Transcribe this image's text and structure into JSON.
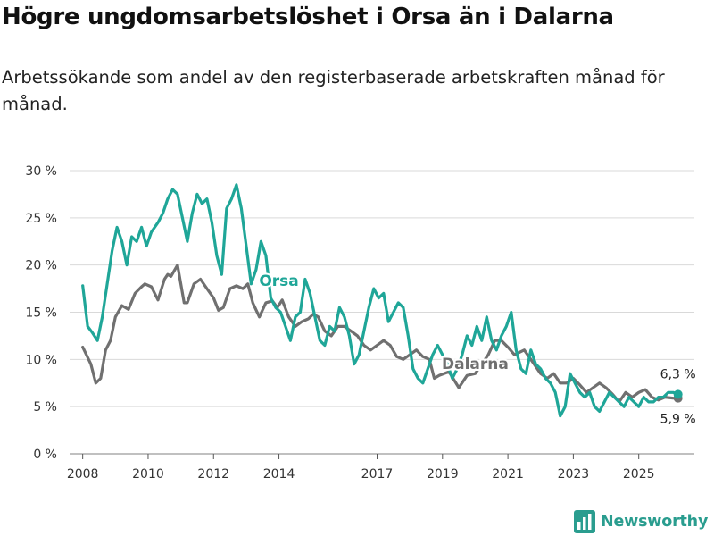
{
  "title": "Högre ungdomsarbetslöshet i Orsa än i Dalarna",
  "subtitle": "Arbetssökande som andel av den registerbaserade arbetskraften månad för månad.",
  "brand": {
    "name": "Newsworthy",
    "logo_icon": "bar-chart-icon",
    "color": "#2a9d8f"
  },
  "chart_data": {
    "type": "line",
    "ylim": [
      0,
      30
    ],
    "xlim": [
      2007.6,
      2026.7
    ],
    "yticks": [
      0,
      5,
      10,
      15,
      20,
      25,
      30
    ],
    "ytick_labels": [
      "0 %",
      "5 %",
      "10 %",
      "15 %",
      "20 %",
      "25 %",
      "30 %"
    ],
    "xticks": [
      2008,
      2010,
      2012,
      2014,
      2017,
      2019,
      2021,
      2023,
      2025
    ],
    "xtick_labels": [
      "2008",
      "2010",
      "2012",
      "2014",
      "2017",
      "2019",
      "2021",
      "2023",
      "2025"
    ],
    "grid": true,
    "series": [
      {
        "name": "Dalarna",
        "label": "Dalarna",
        "color": "#707070",
        "end_label": "5,9 %",
        "x": [
          2008.0,
          2008.25,
          2008.4,
          2008.55,
          2008.7,
          2008.85,
          2009.0,
          2009.2,
          2009.4,
          2009.6,
          2009.8,
          2009.9,
          2010.1,
          2010.3,
          2010.5,
          2010.6,
          2010.7,
          2010.9,
          2011.1,
          2011.2,
          2011.4,
          2011.6,
          2011.8,
          2012.0,
          2012.15,
          2012.3,
          2012.5,
          2012.7,
          2012.9,
          2013.05,
          2013.2,
          2013.4,
          2013.6,
          2013.8,
          2013.95,
          2014.1,
          2014.3,
          2014.5,
          2014.7,
          2014.9,
          2015.05,
          2015.2,
          2015.4,
          2015.6,
          2015.8,
          2016.0,
          2016.2,
          2016.4,
          2016.6,
          2016.8,
          2017.0,
          2017.2,
          2017.4,
          2017.6,
          2017.8,
          2018.0,
          2018.2,
          2018.4,
          2018.6,
          2018.75,
          2018.9,
          2019.2,
          2019.5,
          2019.75,
          2020.0,
          2020.2,
          2020.4,
          2020.6,
          2020.8,
          2021.0,
          2021.2,
          2021.5,
          2021.8,
          2022.0,
          2022.2,
          2022.4,
          2022.6,
          2022.8,
          2023.0,
          2023.2,
          2023.4,
          2023.6,
          2023.8,
          2024.0,
          2024.2,
          2024.4,
          2024.6,
          2024.8,
          2025.0,
          2025.2,
          2025.4,
          2025.6,
          2025.8,
          2026.05,
          2026.2
        ],
        "values": [
          11.3,
          9.5,
          7.5,
          8.0,
          11.0,
          12.0,
          14.5,
          15.7,
          15.3,
          17.0,
          17.7,
          18.0,
          17.7,
          16.3,
          18.5,
          19.0,
          18.8,
          20.0,
          16.0,
          16.0,
          18.0,
          18.5,
          17.5,
          16.5,
          15.2,
          15.5,
          17.5,
          17.8,
          17.5,
          18.0,
          16.0,
          14.5,
          16.0,
          16.2,
          15.5,
          16.3,
          14.5,
          13.5,
          14.0,
          14.3,
          14.8,
          14.5,
          13.0,
          12.5,
          13.5,
          13.5,
          13.0,
          12.5,
          11.5,
          11.0,
          11.5,
          12.0,
          11.5,
          10.3,
          10.0,
          10.5,
          11.0,
          10.3,
          10.0,
          8.0,
          8.3,
          8.7,
          7.0,
          8.3,
          8.5,
          9.5,
          10.5,
          12.0,
          12.0,
          11.3,
          10.5,
          11.0,
          9.5,
          8.5,
          8.0,
          8.5,
          7.5,
          7.5,
          8.0,
          7.3,
          6.5,
          7.0,
          7.5,
          7.0,
          6.3,
          5.5,
          6.5,
          6.0,
          6.5,
          6.8,
          6.0,
          5.7,
          6.0,
          5.9,
          5.9
        ]
      },
      {
        "name": "Orsa",
        "label": "Orsa",
        "color": "#1fa698",
        "end_label": "6,3 %",
        "x": [
          2008.0,
          2008.15,
          2008.3,
          2008.45,
          2008.6,
          2008.75,
          2008.9,
          2009.05,
          2009.2,
          2009.35,
          2009.5,
          2009.65,
          2009.8,
          2009.95,
          2010.1,
          2010.3,
          2010.45,
          2010.6,
          2010.75,
          2010.9,
          2011.05,
          2011.2,
          2011.35,
          2011.5,
          2011.65,
          2011.8,
          2011.95,
          2012.1,
          2012.25,
          2012.4,
          2012.55,
          2012.7,
          2012.85,
          2013.0,
          2013.15,
          2013.3,
          2013.45,
          2013.6,
          2013.75,
          2013.9,
          2014.05,
          2014.2,
          2014.35,
          2014.5,
          2014.65,
          2014.8,
          2014.95,
          2015.1,
          2015.25,
          2015.4,
          2015.55,
          2015.7,
          2015.85,
          2016.0,
          2016.15,
          2016.3,
          2016.45,
          2016.6,
          2016.75,
          2016.9,
          2017.05,
          2017.2,
          2017.35,
          2017.5,
          2017.65,
          2017.8,
          2017.95,
          2018.1,
          2018.25,
          2018.4,
          2018.55,
          2018.7,
          2018.85,
          2019.0,
          2019.15,
          2019.3,
          2019.45,
          2019.6,
          2019.75,
          2019.9,
          2020.05,
          2020.2,
          2020.35,
          2020.5,
          2020.65,
          2020.8,
          2020.95,
          2021.1,
          2021.25,
          2021.4,
          2021.55,
          2021.7,
          2021.85,
          2022.0,
          2022.15,
          2022.3,
          2022.45,
          2022.6,
          2022.75,
          2022.9,
          2023.05,
          2023.2,
          2023.35,
          2023.5,
          2023.65,
          2023.8,
          2023.95,
          2024.1,
          2024.25,
          2024.4,
          2024.55,
          2024.7,
          2024.85,
          2025.0,
          2025.15,
          2025.3,
          2025.45,
          2025.6,
          2025.75,
          2025.9,
          2026.05,
          2026.2
        ],
        "values": [
          17.8,
          13.5,
          12.8,
          12.0,
          14.5,
          18.0,
          21.5,
          24.0,
          22.5,
          20.0,
          23.0,
          22.5,
          24.0,
          22.0,
          23.5,
          24.5,
          25.5,
          27.0,
          28.0,
          27.5,
          25.0,
          22.5,
          25.5,
          27.5,
          26.5,
          27.0,
          24.5,
          21.0,
          19.0,
          26.0,
          27.0,
          28.5,
          26.0,
          22.0,
          18.0,
          19.5,
          22.5,
          21.0,
          16.5,
          15.5,
          15.0,
          13.5,
          12.0,
          14.5,
          15.0,
          18.5,
          17.0,
          14.5,
          12.0,
          11.5,
          13.5,
          13.0,
          15.5,
          14.5,
          12.5,
          9.5,
          10.5,
          13.0,
          15.5,
          17.5,
          16.5,
          17.0,
          14.0,
          15.0,
          16.0,
          15.5,
          12.5,
          9.0,
          8.0,
          7.5,
          9.0,
          10.5,
          11.5,
          10.5,
          9.5,
          8.0,
          9.0,
          10.5,
          12.5,
          11.5,
          13.5,
          12.0,
          14.5,
          12.0,
          11.0,
          12.5,
          13.5,
          15.0,
          11.0,
          9.0,
          8.5,
          11.0,
          9.5,
          9.0,
          8.0,
          7.5,
          6.5,
          4.0,
          5.0,
          8.5,
          7.5,
          6.5,
          6.0,
          6.5,
          5.0,
          4.5,
          5.5,
          6.5,
          6.0,
          5.5,
          5.0,
          6.0,
          5.5,
          5.0,
          6.0,
          5.5,
          5.5,
          6.0,
          6.0,
          6.5,
          6.5,
          6.3
        ]
      }
    ]
  }
}
